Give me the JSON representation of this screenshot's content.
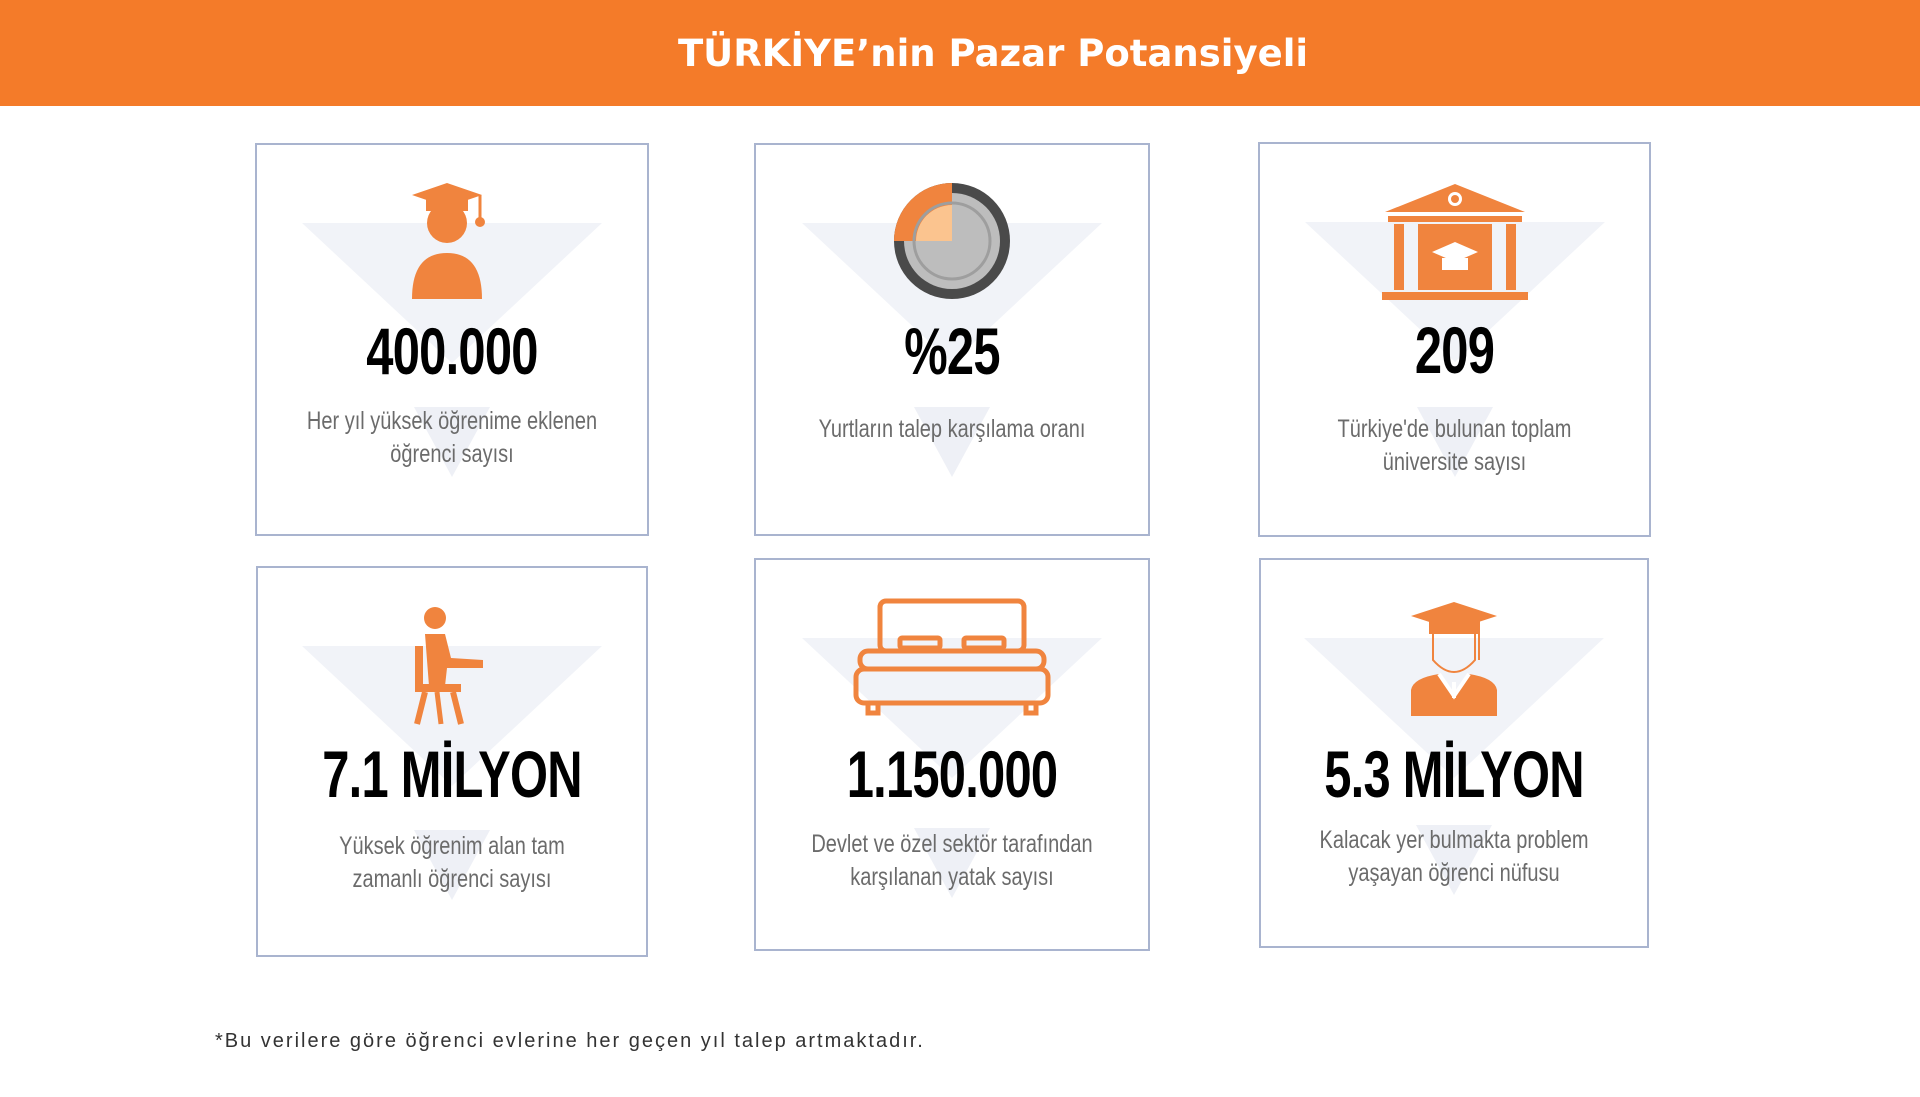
{
  "header": {
    "title": "TÜRKİYE’nin Pazar Potansiyeli"
  },
  "colors": {
    "accent": "#f47b29",
    "icon": "#f0843e"
  },
  "cards": [
    {
      "icon": "graduate-icon",
      "value": "400.000",
      "desc": "Her yıl yüksek öğrenime eklenen öğrenci sayısı"
    },
    {
      "icon": "pie-gauge-icon",
      "value": "%25",
      "desc": "Yurtların talep karşılama oranı"
    },
    {
      "icon": "university-icon",
      "value": "209",
      "desc": "Türkiye'de bulunan toplam üniversite sayısı"
    },
    {
      "icon": "student-desk-icon",
      "value": "7.1 MİLYON",
      "desc": "Yüksek öğrenim alan tam zamanlı öğrenci sayısı"
    },
    {
      "icon": "bed-icon",
      "value": "1.150.000",
      "desc": "Devlet ve özel sektör tarafından karşılanan yatak sayısı"
    },
    {
      "icon": "graduate-gown-icon",
      "value": "5.3 MİLYON",
      "desc": "Kalacak yer bulmakta problem yaşayan öğrenci nüfusu"
    }
  ],
  "footnote": "*Bu verilere göre öğrenci evlerine her geçen yıl talep artmaktadır."
}
